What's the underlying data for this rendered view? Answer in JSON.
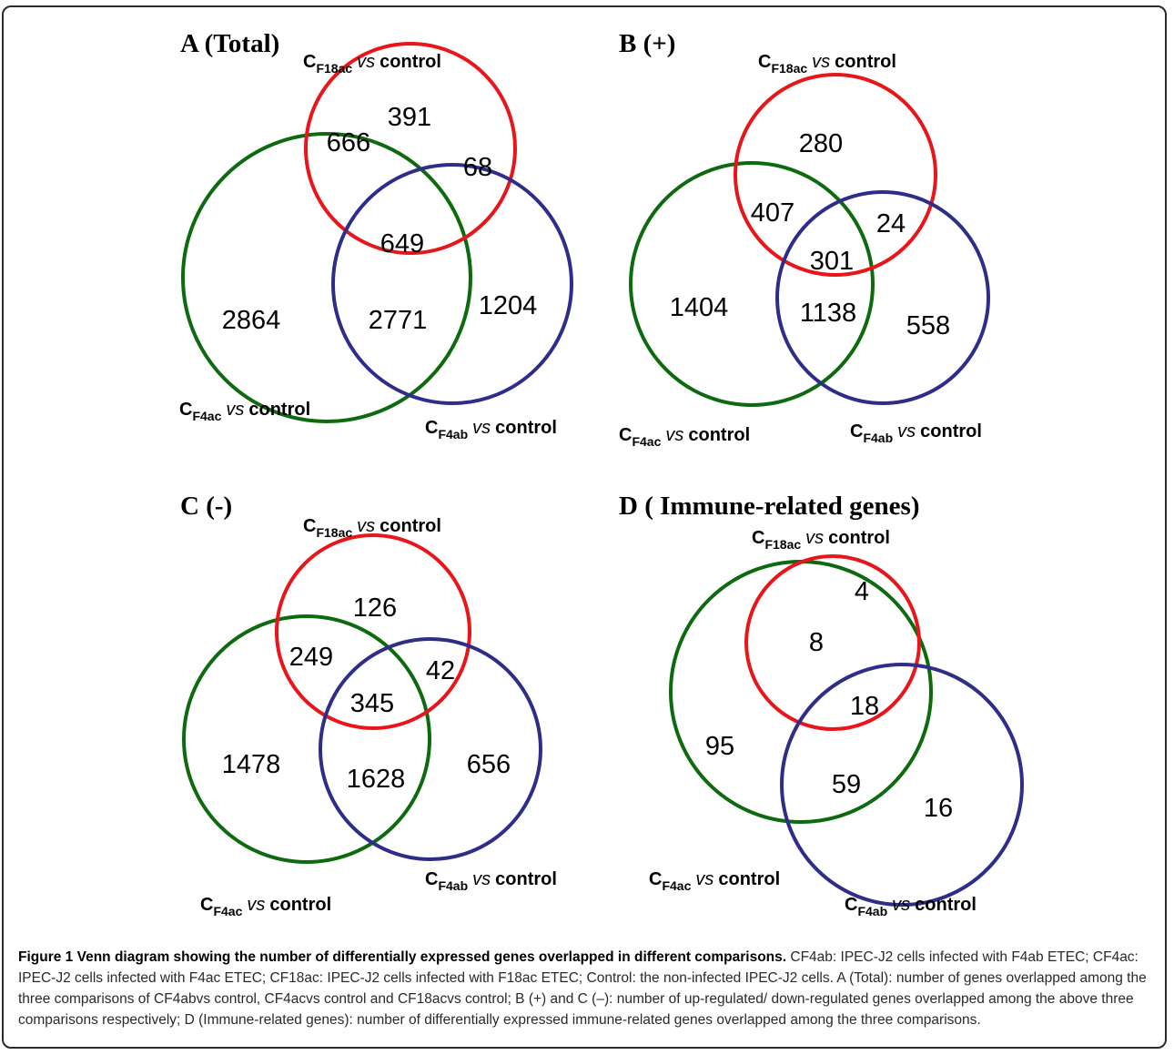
{
  "colors": {
    "red_circle": "#e8151b",
    "green_circle": "#0e6a0f",
    "blue_circle": "#2e2d8a",
    "frame": "#2b2b2b"
  },
  "label_parts": {
    "c": "C",
    "vs": "vs",
    "control": "control",
    "f18ac": "F18ac",
    "f4ac": "F4ac",
    "f4ab": "F4ab"
  },
  "panels": [
    {
      "title": "A (Total)",
      "regions": {
        "f18ac_only": "391",
        "f18ac_f4ac": "666",
        "f18ac_f4ab": "68",
        "all_three": "649",
        "f4ac_only": "2864",
        "f4ac_f4ab": "2771",
        "f4ab_only": "1204"
      }
    },
    {
      "title": "B (+)",
      "regions": {
        "f18ac_only": "280",
        "f18ac_f4ac": "407",
        "f18ac_f4ab": "24",
        "all_three": "301",
        "f4ac_only": "1404",
        "f4ac_f4ab": "1138",
        "f4ab_only": "558"
      }
    },
    {
      "title": "C (-)",
      "regions": {
        "f18ac_only": "126",
        "f18ac_f4ac": "249",
        "f18ac_f4ab": "42",
        "all_three": "345",
        "f4ac_only": "1478",
        "f4ac_f4ab": "1628",
        "f4ab_only": "656"
      }
    },
    {
      "title": "D ( Immune-related genes)",
      "regions": {
        "f18ac_only": "4",
        "f18ac_f4ac": "8",
        "all_three": "18",
        "f4ac_only": "95",
        "f4ac_f4ab": "59",
        "f4ab_only": "16"
      }
    }
  ],
  "caption": {
    "title": "Figure 1 Venn diagram showing the number of differentially expressed genes overlapped in different comparisons.",
    "body": "CF4ab: IPEC-J2 cells infected with F4ab ETEC; CF4ac: IPEC-J2 cells infected with F4ac ETEC; CF18ac: IPEC-J2 cells infected with F18ac ETEC; Control: the non-infected IPEC-J2 cells. A (Total): number of genes overlapped among the three comparisons of CF4abvs control, CF4acvs control and CF18acvs control; B (+) and C (–): number of up-regulated/ down-regulated genes overlapped among the above three comparisons respectively; D (Immune-related genes): number of differentially expressed immune-related genes overlapped among the three comparisons."
  }
}
